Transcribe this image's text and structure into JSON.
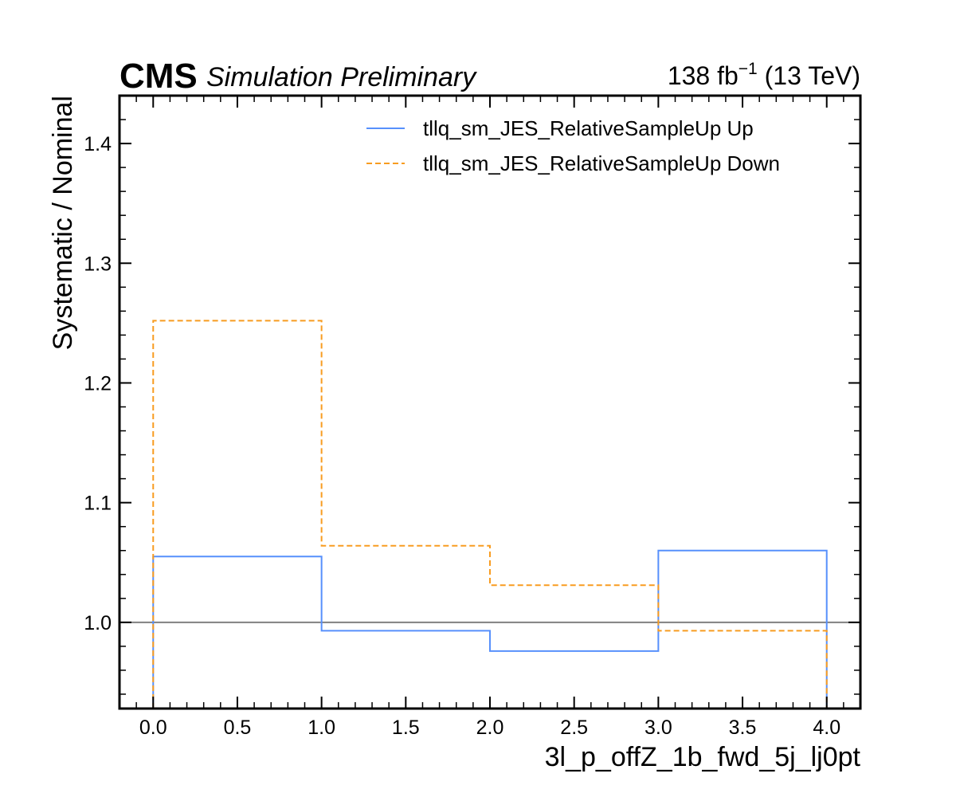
{
  "header": {
    "experiment": "CMS",
    "status": "Simulation Preliminary",
    "lumi_value": "138 fb",
    "lumi_exponent": "−1",
    "energy": " (13 TeV)"
  },
  "chart_data": {
    "type": "line",
    "drawstyle": "steps",
    "xlabel": "3l_p_offZ_1b_fwd_5j_lj0pt",
    "ylabel": "Systematic / Nominal",
    "xlim": [
      -0.2,
      4.2
    ],
    "ylim": [
      0.928,
      1.44
    ],
    "x_ticks": [
      "0.0",
      "0.5",
      "1.0",
      "1.5",
      "2.0",
      "2.5",
      "3.0",
      "3.5",
      "4.0"
    ],
    "y_ticks": [
      "1.0",
      "1.1",
      "1.2",
      "1.3",
      "1.4"
    ],
    "bin_edges": [
      0,
      1,
      2,
      3,
      4
    ],
    "reference_line": 1.0,
    "grid": false,
    "legend_position": "top-right",
    "series": [
      {
        "name": "tllq_sm_JES_RelativeSampleUp Up",
        "values": [
          1.055,
          0.993,
          0.976,
          1.06
        ],
        "color": "#5790fc",
        "style": "solid"
      },
      {
        "name": "tllq_sm_JES_RelativeSampleUp Down",
        "values": [
          1.252,
          1.064,
          1.031,
          0.993
        ],
        "color": "#f89c20",
        "style": "dashed"
      }
    ]
  }
}
